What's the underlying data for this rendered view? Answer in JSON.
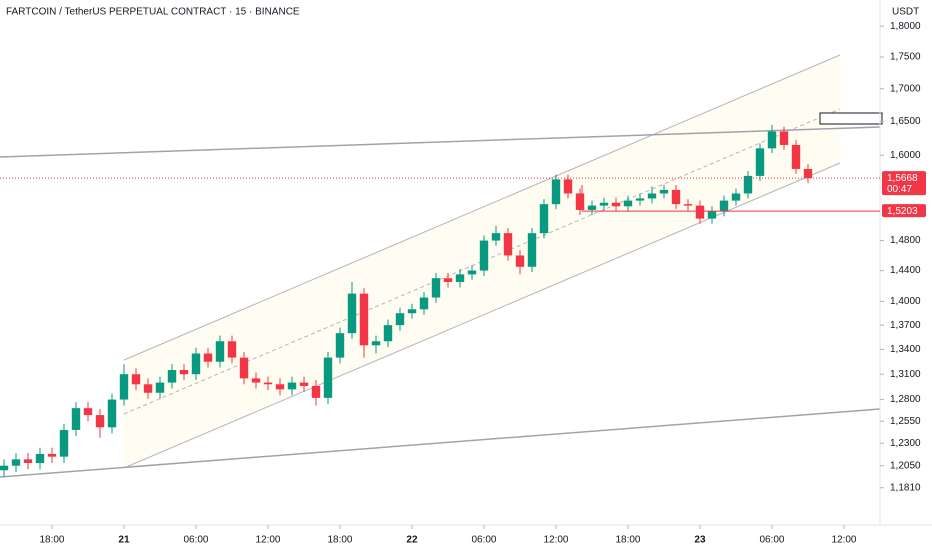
{
  "chart_data": {
    "type": "candlestick",
    "title": "FARTCOIN / TetherUS PERPETUAL CONTRACT · 15 · BINANCE",
    "y_label": "USDT",
    "log_scale": true,
    "up_color": "#089981",
    "down_color": "#f23645",
    "x": [
      14,
      15,
      16,
      17,
      18,
      19,
      20,
      21,
      22,
      23,
      24,
      25,
      26,
      27,
      28,
      29,
      30,
      31,
      32,
      33,
      34,
      35,
      36,
      37,
      38,
      39,
      40,
      41,
      42,
      43,
      44,
      45,
      46,
      47,
      48,
      49,
      50,
      51,
      52,
      53,
      54,
      55,
      56,
      57,
      58,
      59,
      60,
      61,
      62,
      63,
      64,
      65,
      66,
      67,
      68,
      69,
      70,
      71,
      72,
      73,
      74,
      75,
      76,
      77,
      78,
      79,
      80,
      81
    ],
    "open": [
      1.2,
      1.205,
      1.212,
      1.208,
      1.218,
      1.215,
      1.245,
      1.27,
      1.262,
      1.248,
      1.28,
      1.31,
      1.298,
      1.288,
      1.3,
      1.315,
      1.31,
      1.335,
      1.325,
      1.35,
      1.33,
      1.305,
      1.3,
      1.298,
      1.292,
      1.3,
      1.296,
      1.282,
      1.33,
      1.36,
      1.41,
      1.345,
      1.35,
      1.37,
      1.385,
      1.39,
      1.405,
      1.43,
      1.425,
      1.435,
      1.44,
      1.48,
      1.49,
      1.46,
      1.445,
      1.49,
      1.53,
      1.565,
      1.545,
      1.522,
      1.528,
      1.532,
      1.527,
      1.535,
      1.538,
      1.545,
      1.55,
      1.53,
      1.528,
      1.51,
      1.52,
      1.535,
      1.545,
      1.57,
      1.61,
      1.635,
      1.615,
      1.58
    ],
    "high": [
      1.212,
      1.219,
      1.219,
      1.225,
      1.225,
      1.252,
      1.277,
      1.277,
      1.269,
      1.287,
      1.322,
      1.317,
      1.305,
      1.307,
      1.322,
      1.322,
      1.342,
      1.342,
      1.357,
      1.357,
      1.337,
      1.312,
      1.307,
      1.305,
      1.307,
      1.307,
      1.303,
      1.337,
      1.367,
      1.425,
      1.417,
      1.357,
      1.377,
      1.392,
      1.397,
      1.412,
      1.437,
      1.437,
      1.442,
      1.447,
      1.487,
      1.5,
      1.497,
      1.467,
      1.497,
      1.537,
      1.572,
      1.572,
      1.552,
      1.535,
      1.539,
      1.539,
      1.542,
      1.545,
      1.555,
      1.557,
      1.557,
      1.537,
      1.535,
      1.527,
      1.542,
      1.552,
      1.577,
      1.617,
      1.645,
      1.642,
      1.622,
      1.587
    ],
    "low": [
      1.193,
      1.198,
      1.201,
      1.201,
      1.208,
      1.208,
      1.238,
      1.255,
      1.236,
      1.241,
      1.273,
      1.291,
      1.281,
      1.281,
      1.293,
      1.303,
      1.303,
      1.318,
      1.318,
      1.323,
      1.298,
      1.293,
      1.291,
      1.285,
      1.285,
      1.289,
      1.273,
      1.275,
      1.323,
      1.353,
      1.33,
      1.335,
      1.343,
      1.363,
      1.378,
      1.383,
      1.398,
      1.418,
      1.418,
      1.428,
      1.433,
      1.473,
      1.453,
      1.435,
      1.438,
      1.483,
      1.523,
      1.538,
      1.515,
      1.515,
      1.521,
      1.52,
      1.52,
      1.528,
      1.531,
      1.538,
      1.523,
      1.521,
      1.503,
      1.503,
      1.513,
      1.528,
      1.538,
      1.563,
      1.603,
      1.608,
      1.573,
      1.56
    ],
    "close": [
      1.205,
      1.212,
      1.208,
      1.218,
      1.215,
      1.245,
      1.27,
      1.262,
      1.248,
      1.28,
      1.31,
      1.298,
      1.288,
      1.3,
      1.315,
      1.31,
      1.335,
      1.325,
      1.35,
      1.33,
      1.305,
      1.3,
      1.298,
      1.292,
      1.3,
      1.296,
      1.282,
      1.33,
      1.36,
      1.41,
      1.345,
      1.35,
      1.37,
      1.385,
      1.39,
      1.405,
      1.43,
      1.425,
      1.435,
      1.44,
      1.48,
      1.49,
      1.46,
      1.445,
      1.49,
      1.53,
      1.565,
      1.545,
      1.522,
      1.528,
      1.532,
      1.527,
      1.535,
      1.538,
      1.545,
      1.55,
      1.53,
      1.528,
      1.51,
      1.52,
      1.535,
      1.545,
      1.57,
      1.61,
      1.635,
      1.615,
      1.58,
      1.5668
    ],
    "xlim": [
      13.667,
      87
    ],
    "xticks": [
      {
        "value": 18,
        "label": "18:00"
      },
      {
        "value": 24,
        "label": "21"
      },
      {
        "value": 30,
        "label": "06:00"
      },
      {
        "value": 36,
        "label": "12:00"
      },
      {
        "value": 42,
        "label": "18:00"
      },
      {
        "value": 48,
        "label": "22"
      },
      {
        "value": 54,
        "label": "06:00"
      },
      {
        "value": 60,
        "label": "12:00"
      },
      {
        "value": 66,
        "label": "18:00"
      },
      {
        "value": 72,
        "label": "23"
      },
      {
        "value": 78,
        "label": "06:00"
      },
      {
        "value": 84,
        "label": "12:00"
      }
    ],
    "ylim": [
      1.1415,
      1.8435
    ],
    "yticks": [
      {
        "value": 1.8,
        "label": "1,8000"
      },
      {
        "value": 1.75,
        "label": "1,7500"
      },
      {
        "value": 1.7,
        "label": "1,7000"
      },
      {
        "value": 1.65,
        "label": "1,6500"
      },
      {
        "value": 1.6,
        "label": "1,6000"
      },
      {
        "value": 1.48,
        "label": "1,4800"
      },
      {
        "value": 1.44,
        "label": "1,4400"
      },
      {
        "value": 1.4,
        "label": "1,4000"
      },
      {
        "value": 1.37,
        "label": "1,3700"
      },
      {
        "value": 1.34,
        "label": "1,3400"
      },
      {
        "value": 1.31,
        "label": "1,3100"
      },
      {
        "value": 1.28,
        "label": "1,2800"
      },
      {
        "value": 1.255,
        "label": "1,2550"
      },
      {
        "value": 1.23,
        "label": "1,2300"
      },
      {
        "value": 1.205,
        "label": "1,2050"
      },
      {
        "value": 1.181,
        "label": "1,1810"
      }
    ],
    "price_lines": [
      {
        "value": 1.5668,
        "label": "1,5668",
        "countdown": "00:47",
        "color": "#f23645"
      },
      {
        "value": 1.5203,
        "label": "1,5203",
        "color": "#f23645"
      }
    ]
  }
}
